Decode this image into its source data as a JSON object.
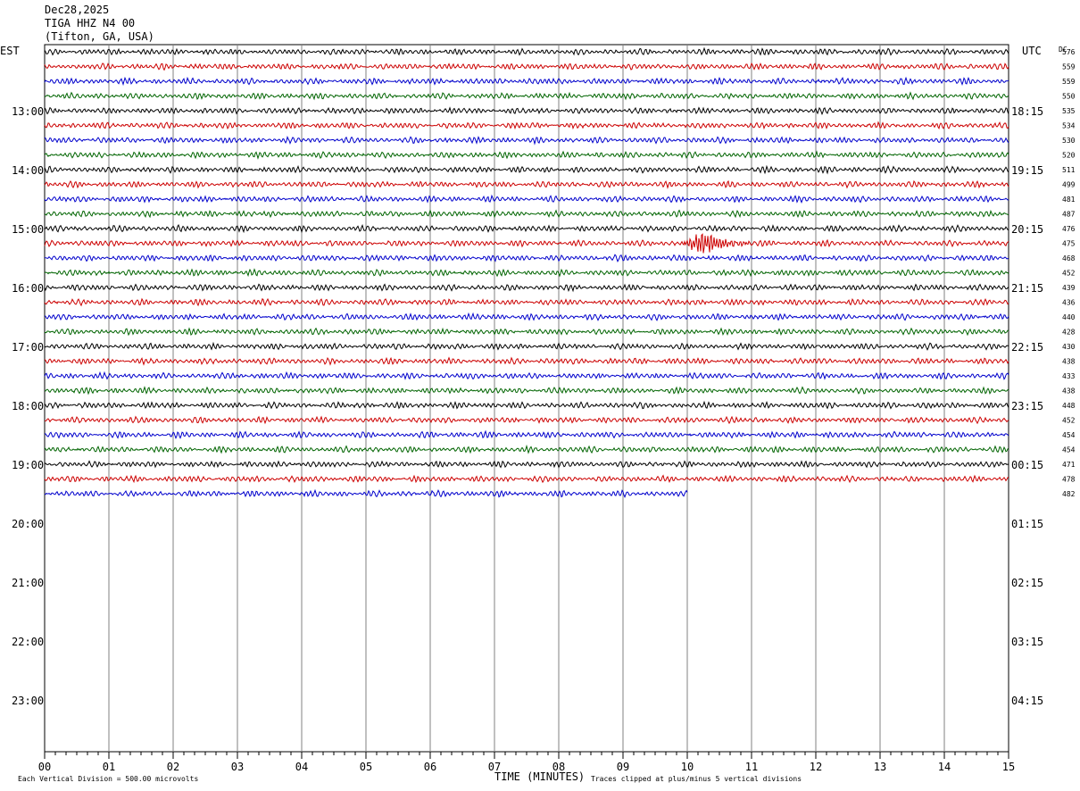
{
  "header": {
    "date": "Dec28,2025",
    "station": "TIGA HHZ N4 00",
    "location": "(Tifton, GA, USA)"
  },
  "axis_labels": {
    "left_zone": "EST",
    "right_zone": "UTC",
    "dc_header": "DC",
    "xlabel": "TIME (MINUTES)"
  },
  "footer": {
    "scale_note": "Each Vertical Division =  500.00 microvolts",
    "clip_note": "Traces clipped at plus/minus 5 vertical divisions"
  },
  "colors": {
    "trace_cycle": [
      "#000000",
      "#cc0000",
      "#0000cc",
      "#006400"
    ],
    "grid": "#808080",
    "frame": "#000000"
  },
  "chart_data": {
    "type": "line",
    "title": "TIGA HHZ N4 00",
    "x_ticks": [
      "00",
      "01",
      "02",
      "03",
      "04",
      "05",
      "06",
      "07",
      "08",
      "09",
      "10",
      "11",
      "12",
      "13",
      "14",
      "15"
    ],
    "xlim": [
      0,
      15
    ],
    "left_hour_labels": [
      "13:00",
      "14:00",
      "15:00",
      "16:00",
      "17:00",
      "18:00",
      "19:00",
      "20:00",
      "21:00",
      "22:00",
      "23:00"
    ],
    "right_hour_labels": [
      "18:15",
      "19:15",
      "20:15",
      "21:15",
      "22:15",
      "23:15",
      "00:15",
      "01:15",
      "02:15",
      "03:15",
      "04:15"
    ],
    "traces_per_hour": 4,
    "dc_offsets": [
      576,
      559,
      559,
      550,
      535,
      534,
      530,
      520,
      511,
      499,
      481,
      487,
      476,
      475,
      468,
      452,
      439,
      436,
      440,
      428,
      430,
      438,
      433,
      438,
      448,
      452,
      454,
      454,
      471,
      478,
      482
    ],
    "last_trace_end_minute": 10,
    "event": {
      "trace_index": 13,
      "start_minute": 9.9,
      "peak_minute": 10.3,
      "end_minute": 11.0
    }
  }
}
